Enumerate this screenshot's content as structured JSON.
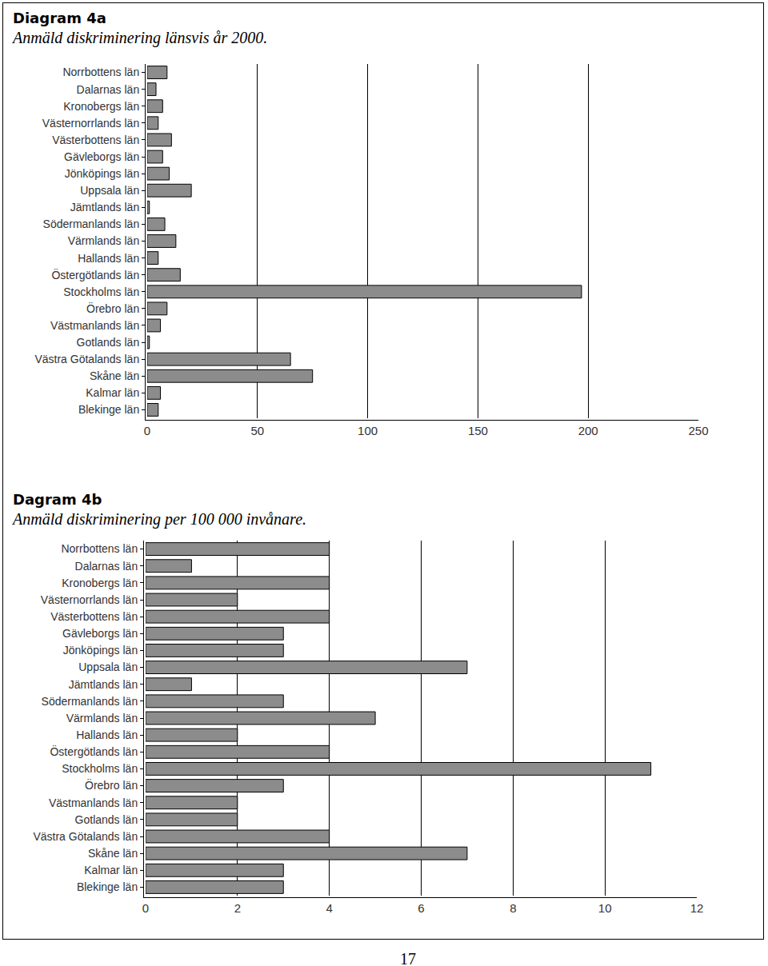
{
  "chart_data": [
    {
      "type": "bar",
      "orientation": "horizontal",
      "title": "Diagram 4a",
      "subtitle": "Anmäld diskriminering länsvis år 2000.",
      "categories": [
        "Norrbottens län",
        "Dalarnas län",
        "Kronobergs län",
        "Västernorrlands län",
        "Västerbottens län",
        "Gävleborgs län",
        "Jönköpings län",
        "Uppsala län",
        "Jämtlands län",
        "Södermanlands län",
        "Värmlands län",
        "Hallands län",
        "Östergötlands län",
        "Stockholms län",
        "Örebro län",
        "Västmanlands län",
        "Gotlands län",
        "Västra Götalands län",
        "Skåne län",
        "Kalmar län",
        "Blekinge län"
      ],
      "values": [
        9,
        4,
        7,
        5,
        11,
        7,
        10,
        20,
        1,
        8,
        13,
        5,
        15,
        197,
        9,
        6,
        1,
        65,
        75,
        6,
        5
      ],
      "color": "#8c8c8c",
      "xlim": [
        0,
        250
      ],
      "xticks": [
        0,
        50,
        100,
        150,
        200,
        250
      ],
      "grid": true
    },
    {
      "type": "bar",
      "orientation": "horizontal",
      "title": "Dagram 4b",
      "subtitle": "Anmäld diskriminering per 100 000 invånare.",
      "categories": [
        "Norrbottens län",
        "Dalarnas län",
        "Kronobergs län",
        "Västernorrlands län",
        "Västerbottens län",
        "Gävleborgs län",
        "Jönköpings län",
        "Uppsala län",
        "Jämtlands län",
        "Södermanlands län",
        "Värmlands län",
        "Hallands län",
        "Östergötlands län",
        "Stockholms län",
        "Örebro län",
        "Västmanlands län",
        "Gotlands län",
        "Västra Götalands län",
        "Skåne län",
        "Kalmar län",
        "Blekinge län"
      ],
      "values": [
        4,
        1,
        4,
        2,
        4,
        3,
        3,
        7,
        1,
        3,
        5,
        2,
        4,
        11,
        3,
        2,
        2,
        4,
        7,
        3,
        3
      ],
      "color": "#8c8c8c",
      "xlim": [
        0,
        12
      ],
      "xticks": [
        0,
        2,
        4,
        6,
        8,
        10,
        12
      ],
      "grid": true
    }
  ],
  "page_number": "17"
}
